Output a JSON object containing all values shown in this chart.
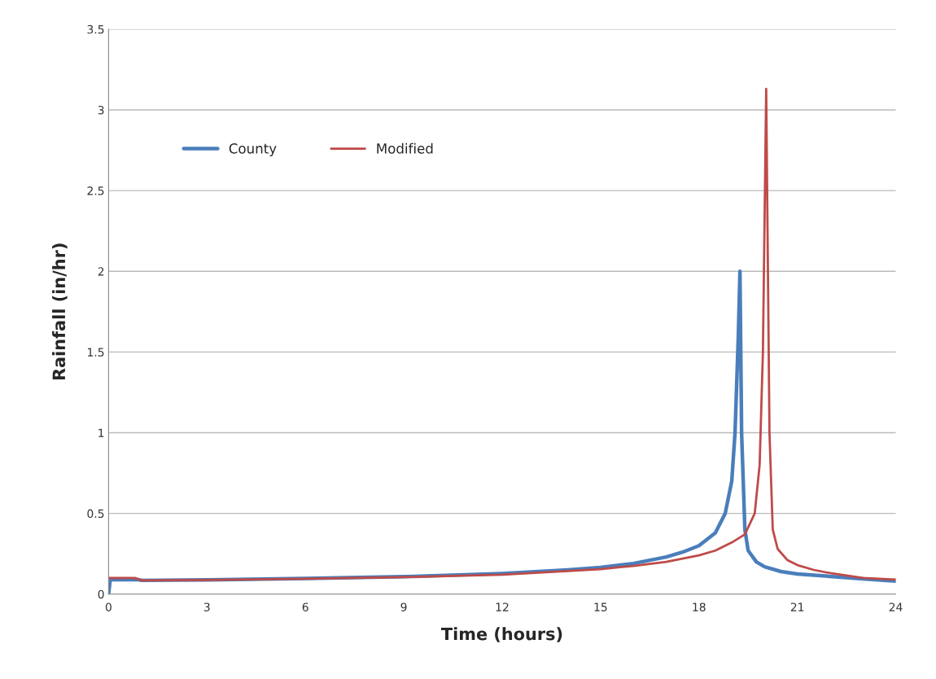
{
  "chart_data": {
    "type": "line",
    "xlabel": "Time (hours)",
    "ylabel": "Rainfall (in/hr)",
    "xlim": [
      0,
      24
    ],
    "xticks": [
      0,
      3,
      6,
      9,
      12,
      15,
      18,
      21,
      24
    ],
    "ylim": [
      0,
      3.5
    ],
    "yticks": [
      0,
      0.5,
      1,
      1.5,
      2,
      2.5,
      3,
      3.5
    ],
    "grid": "y",
    "legend": "top left",
    "line_style": "solid",
    "marker": "none",
    "series": [
      {
        "name": "County",
        "color": "#4a7ebb",
        "x": [
          0,
          0.05,
          0.9,
          1,
          3,
          6,
          9,
          12,
          14,
          15,
          16,
          17,
          17.5,
          18,
          18.5,
          18.8,
          19,
          19.1,
          19.2,
          19.25,
          19.3,
          19.4,
          19.5,
          19.75,
          20,
          20.5,
          21,
          22,
          23,
          24
        ],
        "values": [
          0,
          0.09,
          0.09,
          0.085,
          0.088,
          0.097,
          0.108,
          0.128,
          0.15,
          0.165,
          0.19,
          0.23,
          0.26,
          0.3,
          0.38,
          0.5,
          0.7,
          1.0,
          1.6,
          2.0,
          1.0,
          0.4,
          0.27,
          0.2,
          0.17,
          0.14,
          0.125,
          0.11,
          0.095,
          0.08
        ]
      },
      {
        "name": "Modified",
        "color": "#be4b48",
        "x": [
          0,
          0.8,
          1,
          3,
          6,
          9,
          12,
          15,
          16,
          17,
          18,
          18.5,
          19,
          19.4,
          19.7,
          19.85,
          19.95,
          20.05,
          20.15,
          20.25,
          20.4,
          20.7,
          21,
          21.5,
          22,
          23,
          24
        ],
        "values": [
          0.1,
          0.1,
          0.085,
          0.088,
          0.095,
          0.105,
          0.12,
          0.155,
          0.175,
          0.2,
          0.24,
          0.27,
          0.32,
          0.37,
          0.5,
          0.8,
          1.5,
          3.13,
          1.0,
          0.4,
          0.28,
          0.21,
          0.18,
          0.15,
          0.13,
          0.1,
          0.09
        ]
      }
    ]
  }
}
